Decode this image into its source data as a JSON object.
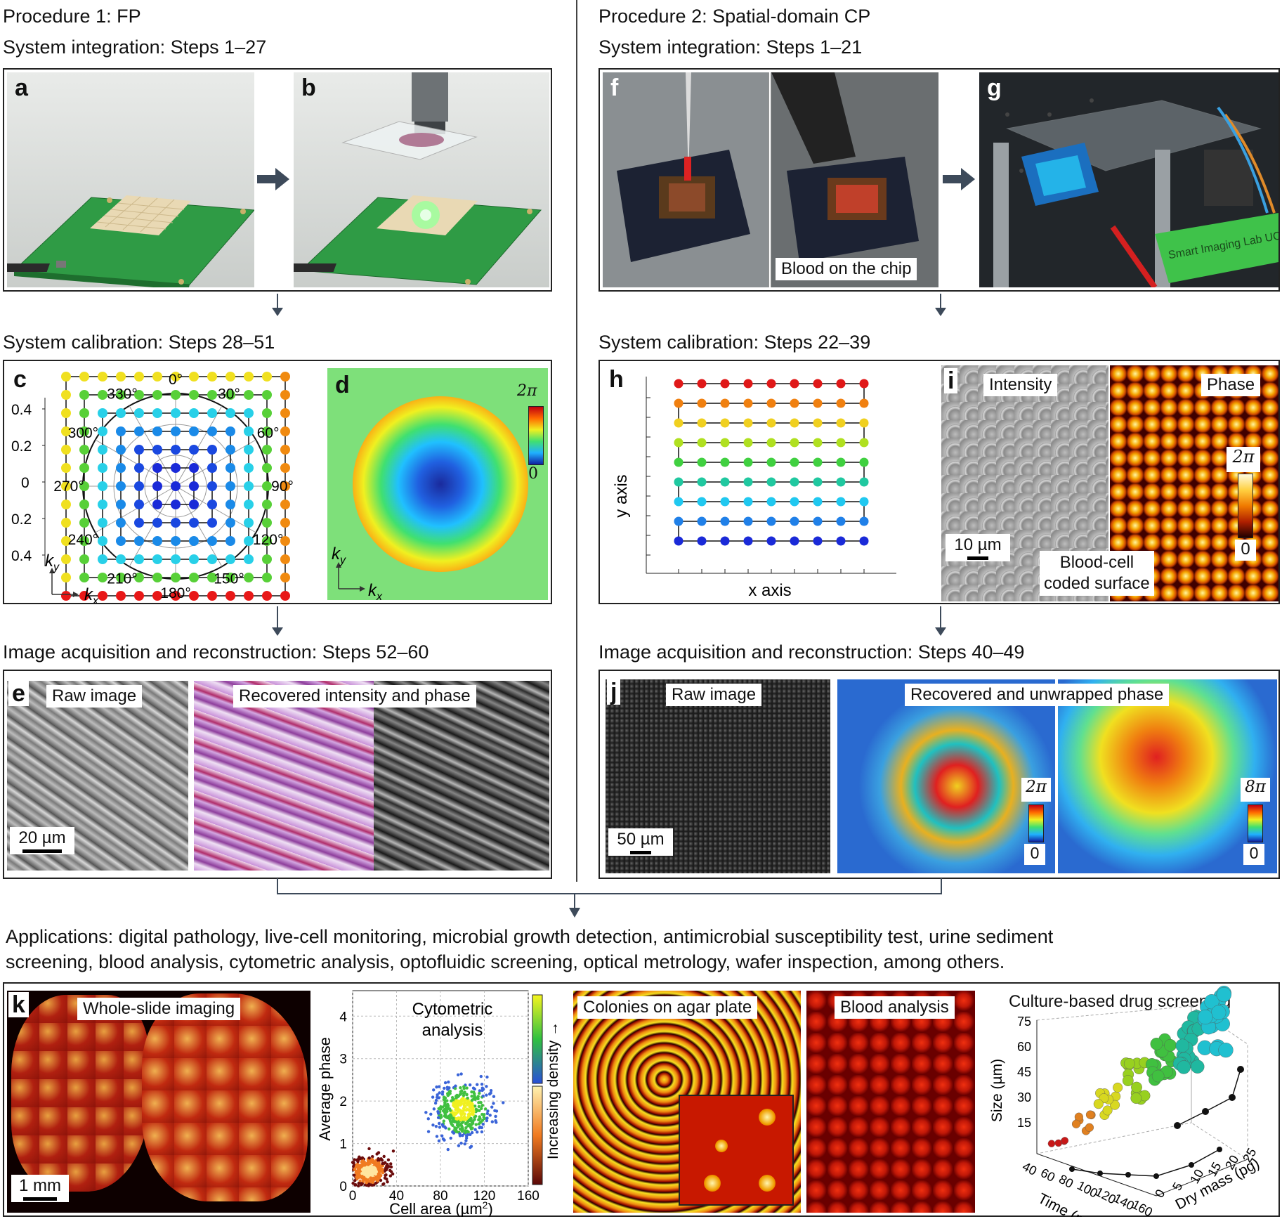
{
  "procedure1": {
    "title": "Procedure 1: FP",
    "integration": "System integration: Steps 1–27",
    "calibration": "System calibration: Steps 28–51",
    "acquisition": "Image acquisition and reconstruction: Steps 52–60"
  },
  "procedure2": {
    "title": "Procedure 2: Spatial-domain CP",
    "integration": "System integration: Steps 1–21",
    "calibration": "System calibration: Steps 22–39",
    "acquisition": "Image acquisition and reconstruction: Steps 40–49"
  },
  "panels": {
    "a": "a",
    "b": "b",
    "c": "c",
    "d": "d",
    "e": "e",
    "f": "f",
    "g": "g",
    "h": "h",
    "i": "i",
    "j": "j",
    "k": "k"
  },
  "panel_c": {
    "angles": [
      "0°",
      "30°",
      "60°",
      "90°",
      "120°",
      "150°",
      "180°",
      "210°",
      "240°",
      "270°",
      "300°",
      "330°"
    ],
    "yticks": [
      "0.4",
      "0.2",
      "0",
      "0.2",
      "0.4"
    ],
    "ky": "k",
    "ky_sub": "y",
    "kx": "k",
    "kx_sub": "x"
  },
  "panel_d": {
    "cb_top": "2π",
    "cb_bottom": "0",
    "ky": "k",
    "ky_sub": "y",
    "kx": "k",
    "kx_sub": "x"
  },
  "panel_e": {
    "raw": "Raw image",
    "recovered": "Recovered intensity and phase",
    "scale": "20 µm"
  },
  "panel_f": {
    "caption": "Blood on the chip"
  },
  "panel_g": {
    "plate_text": "Smart Imaging Lab UConn"
  },
  "panel_h": {
    "xlabel": "x axis",
    "ylabel": "y axis"
  },
  "panel_i": {
    "intensity": "Intensity",
    "phase": "Phase",
    "scale": "10 µm",
    "caption_line1": "Blood-cell",
    "caption_line2": "coded surface",
    "cb_top": "2π",
    "cb_bottom": "0"
  },
  "panel_j": {
    "raw": "Raw image",
    "recovered": "Recovered and unwrapped phase",
    "scale": "50 µm",
    "cb1_top": "2π",
    "cb1_bottom": "0",
    "cb2_top": "8π",
    "cb2_bottom": "0"
  },
  "applications": {
    "line1": "Applications: digital pathology, live-cell monitoring, microbial growth detection, antimicrobial susceptibility test, urine sediment",
    "line2": "screening, blood analysis, cytometric analysis, optofluidic screening, optical metrology, wafer inspection, among others."
  },
  "panel_k": {
    "wsi": "Whole-slide imaging",
    "wsi_scale": "1 mm",
    "cyto_line1": "Cytometric",
    "cyto_line2": "analysis",
    "cyto_ylabel": "Average phase",
    "cyto_xlabel": "Cell area (µm",
    "cyto_xlabel_sup": "2",
    "cyto_xlabel_end": ")",
    "cyto_cb_label": "Increasing density →",
    "colonies": "Colonies on agar plate",
    "blood": "Blood analysis",
    "drug": "Culture-based drug screening",
    "drug_size": "Size (µm)",
    "drug_time": "Time (min)",
    "drug_mass": "Dry mass (pg)",
    "drug_size_ticks": [
      "75",
      "60",
      "45",
      "30",
      "15"
    ],
    "drug_time_ticks": [
      "40",
      "60",
      "80",
      "100",
      "120",
      "140",
      "160"
    ],
    "drug_mass_ticks": [
      "0",
      "5",
      "10",
      "15",
      "20",
      "25"
    ]
  },
  "chart_data": [
    {
      "type": "scatter",
      "title": "Cytometric analysis",
      "xlabel": "Cell area (µm2)",
      "ylabel": "Average phase",
      "xlim": [
        0,
        160
      ],
      "ylim": [
        0,
        4.6
      ],
      "xticks": [
        "0",
        "40",
        "80",
        "120",
        "160"
      ],
      "yticks": [
        "0",
        "1",
        "2",
        "3",
        "4"
      ],
      "colorbar": "Increasing density →",
      "clusters": [
        {
          "name": "",
          "center": [
            100,
            1.8
          ],
          "spread": [
            22,
            0.55
          ],
          "color": "#3a64d8"
        },
        {
          "name": "",
          "center": [
            15,
            0.35
          ],
          "spread": [
            14,
            0.3
          ],
          "color": "#6b0c0c"
        }
      ]
    },
    {
      "type": "scatter",
      "title": "Culture-based drug screening",
      "xlabel": "Time (min)",
      "ylabel": "Size (µm)",
      "zlabel": "Dry mass (pg)",
      "ylim": [
        0,
        75
      ],
      "xlim": [
        40,
        160
      ],
      "zlim": [
        0,
        25
      ]
    }
  ]
}
